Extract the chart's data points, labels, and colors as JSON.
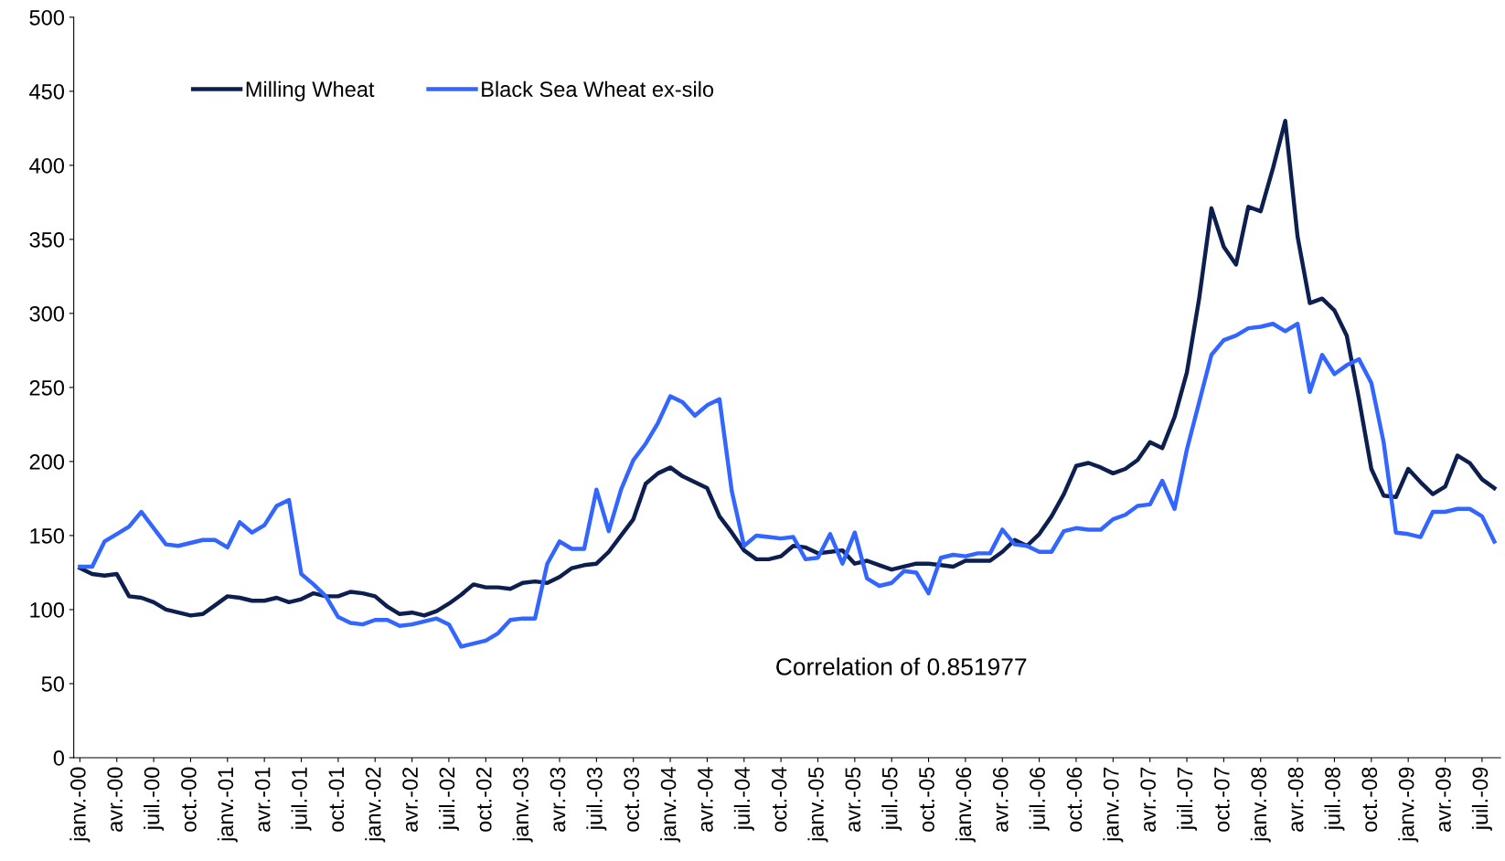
{
  "chart_data": {
    "type": "line",
    "categories": [
      "janv.-00",
      null,
      null,
      "avr.-00",
      null,
      null,
      "juil.-00",
      null,
      null,
      "oct.-00",
      null,
      null,
      "janv.-01",
      null,
      null,
      "avr.-01",
      null,
      null,
      "juil.-01",
      null,
      null,
      "oct.-01",
      null,
      null,
      "janv.-02",
      null,
      null,
      "avr.-02",
      null,
      null,
      "juil.-02",
      null,
      null,
      "oct.-02",
      null,
      null,
      "janv.-03",
      null,
      null,
      "avr.-03",
      null,
      null,
      "juil.-03",
      null,
      null,
      "oct.-03",
      null,
      null,
      "janv.-04",
      null,
      null,
      "avr.-04",
      null,
      null,
      "juil.-04",
      null,
      null,
      "oct.-04",
      null,
      null,
      "janv.-05",
      null,
      null,
      "avr.-05",
      null,
      null,
      "juil.-05",
      null,
      null,
      "oct.-05",
      null,
      null,
      "janv.-06",
      null,
      null,
      "avr.-06",
      null,
      null,
      "juil.-06",
      null,
      null,
      "oct.-06",
      null,
      null,
      "janv.-07",
      null,
      null,
      "avr.-07",
      null,
      null,
      "juil.-07",
      null,
      null,
      "oct.-07",
      null,
      null,
      "janv.-08",
      null,
      null,
      "avr.-08",
      null,
      null,
      "juil.-08",
      null,
      null,
      "oct.-08",
      null,
      null,
      "janv.-09",
      null,
      null,
      "avr.-09",
      null,
      null,
      "juil.-09",
      null
    ],
    "series": [
      {
        "name": "Milling Wheat",
        "color": "#0c1f4f",
        "values": [
          128,
          124,
          123,
          124,
          109,
          108,
          105,
          100,
          98,
          96,
          97,
          103,
          109,
          108,
          106,
          106,
          108,
          105,
          107,
          111,
          109,
          109,
          112,
          111,
          109,
          102,
          97,
          98,
          96,
          99,
          104,
          110,
          117,
          115,
          115,
          114,
          118,
          119,
          118,
          122,
          128,
          130,
          131,
          139,
          150,
          161,
          185,
          192,
          196,
          190,
          186,
          182,
          163,
          152,
          140,
          134,
          134,
          136,
          143,
          142,
          138,
          139,
          140,
          131,
          133,
          130,
          127,
          129,
          131,
          131,
          130,
          129,
          133,
          133,
          133,
          139,
          147,
          143,
          151,
          163,
          178,
          197,
          199,
          196,
          192,
          195,
          201,
          213,
          209,
          230,
          260,
          310,
          371,
          345,
          333,
          372,
          369,
          398,
          430,
          352,
          307,
          310,
          302,
          285,
          242,
          195,
          177,
          176,
          195,
          186,
          178,
          183,
          204,
          199,
          188,
          182
        ]
      },
      {
        "name": "Black Sea Wheat ex-silo",
        "color": "#3366ff",
        "values": [
          129,
          129,
          146,
          151,
          156,
          166,
          155,
          144,
          143,
          145,
          147,
          147,
          142,
          159,
          152,
          157,
          170,
          174,
          124,
          117,
          109,
          95,
          91,
          90,
          93,
          93,
          89,
          90,
          92,
          94,
          90,
          75,
          77,
          79,
          84,
          93,
          94,
          94,
          131,
          146,
          141,
          141,
          181,
          153,
          181,
          201,
          212,
          226,
          244,
          240,
          231,
          238,
          242,
          180,
          143,
          150,
          149,
          148,
          149,
          134,
          135,
          151,
          131,
          152,
          121,
          116,
          118,
          126,
          125,
          111,
          135,
          137,
          136,
          138,
          138,
          154,
          144,
          143,
          139,
          139,
          153,
          155,
          154,
          154,
          161,
          164,
          170,
          171,
          187,
          168,
          208,
          240,
          272,
          282,
          285,
          290,
          291,
          293,
          288,
          293,
          247,
          272,
          259,
          265,
          269,
          253,
          213,
          152,
          151,
          149,
          166,
          166,
          168,
          168,
          163,
          146
        ]
      }
    ],
    "ylim": [
      0,
      500
    ],
    "yticks": [
      0,
      50,
      100,
      150,
      200,
      250,
      300,
      350,
      400,
      450,
      500
    ],
    "grid": false,
    "legend": "top left",
    "marker": "none",
    "line_style": "solid",
    "annotations": [
      "Correlation of 0.851977"
    ]
  }
}
